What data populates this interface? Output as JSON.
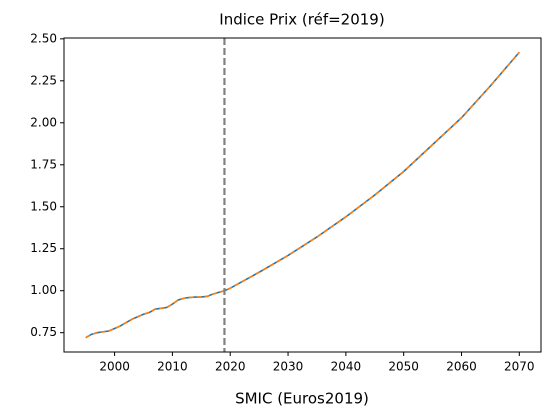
{
  "chart_data": {
    "type": "line",
    "title": "Indice Prix (réf=2019)",
    "x_label": "SMIC (Euros2019)",
    "x": [
      1995,
      1996,
      1997,
      1998,
      1999,
      2000,
      2001,
      2002,
      2003,
      2004,
      2005,
      2006,
      2007,
      2008,
      2009,
      2010,
      2011,
      2012,
      2013,
      2014,
      2015,
      2016,
      2017,
      2018,
      2019,
      2020,
      2025,
      2030,
      2035,
      2040,
      2045,
      2050,
      2055,
      2060,
      2065,
      2070
    ],
    "series": [
      {
        "color": "#1f77b4",
        "dash": false,
        "values": [
          0.72,
          0.74,
          0.75,
          0.755,
          0.76,
          0.775,
          0.79,
          0.81,
          0.83,
          0.845,
          0.86,
          0.87,
          0.89,
          0.895,
          0.9,
          0.92,
          0.945,
          0.955,
          0.96,
          0.962,
          0.963,
          0.966,
          0.98,
          0.99,
          1.0,
          1.015,
          1.11,
          1.21,
          1.32,
          1.44,
          1.57,
          1.71,
          1.87,
          2.03,
          2.22,
          2.42
        ]
      },
      {
        "color": "#ff7f0e",
        "dash": true,
        "values": [
          0.72,
          0.74,
          0.75,
          0.755,
          0.76,
          0.775,
          0.79,
          0.81,
          0.83,
          0.845,
          0.86,
          0.87,
          0.89,
          0.895,
          0.9,
          0.92,
          0.945,
          0.955,
          0.96,
          0.962,
          0.963,
          0.966,
          0.98,
          0.99,
          1.0,
          1.015,
          1.11,
          1.21,
          1.32,
          1.44,
          1.57,
          1.71,
          1.87,
          2.03,
          2.22,
          2.42
        ]
      }
    ],
    "vline": {
      "x": 2019,
      "color": "#808080"
    },
    "xlim": [
      1991.25,
      2073.75
    ],
    "xticks": [
      2000,
      2010,
      2020,
      2030,
      2040,
      2050,
      2060,
      2070
    ],
    "ylim": [
      0.635,
      2.505
    ],
    "yticks": [
      0.75,
      {
        "value": 1.0,
        "label": "1.00"
      },
      1.25,
      {
        "value": 1.5,
        "label": "1.50"
      },
      1.75,
      {
        "value": 2.0,
        "label": "2.00"
      },
      2.25,
      {
        "value": 2.5,
        "label": "2.50"
      }
    ],
    "grid": false
  }
}
